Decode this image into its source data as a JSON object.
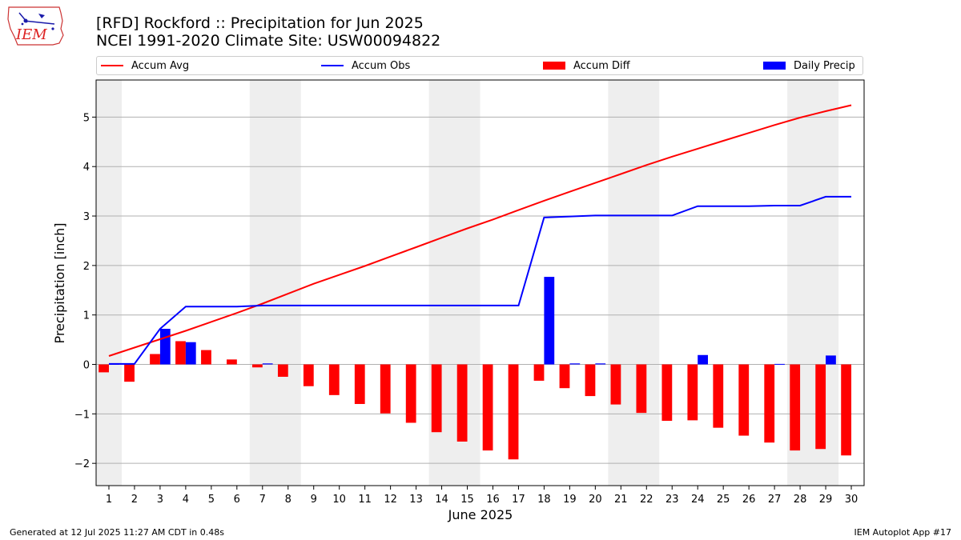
{
  "header": {
    "title_line1": "[RFD] Rockford :: Precipitation for Jun 2025",
    "title_line2": "NCEI 1991-2020 Climate Site: USW00094822"
  },
  "logo": {
    "text": "IEM"
  },
  "legend": {
    "items": [
      {
        "label": "Accum Avg",
        "kind": "line",
        "color": "#ff0000"
      },
      {
        "label": "Accum Obs",
        "kind": "line",
        "color": "#0000ff"
      },
      {
        "label": "Accum Diff",
        "kind": "bar",
        "color": "#ff0000"
      },
      {
        "label": "Daily Precip",
        "kind": "bar",
        "color": "#0000ff"
      }
    ]
  },
  "footer": {
    "left": "Generated at 12 Jul 2025 11:27 AM CDT in 0.48s",
    "right": "IEM Autoplot App #17"
  },
  "chart_data": {
    "type": "bar",
    "title": "[RFD] Rockford :: Precipitation for Jun 2025",
    "subtitle": "NCEI 1991-2020 Climate Site: USW00094822",
    "xlabel": "June 2025",
    "ylabel": "Precipitation [inch]",
    "xlim": [
      0.5,
      30.5
    ],
    "ylim": [
      -2.45,
      5.75
    ],
    "yticks": [
      -2,
      -1,
      0,
      1,
      2,
      3,
      4,
      5
    ],
    "ytick_labels": [
      "−2",
      "−1",
      "0",
      "1",
      "2",
      "3",
      "4",
      "5"
    ],
    "grid": "horizontal",
    "legend_position": "top",
    "weekend_shading": [
      [
        0.5,
        1.5
      ],
      [
        6.5,
        8.5
      ],
      [
        13.5,
        15.5
      ],
      [
        20.5,
        22.5
      ],
      [
        27.5,
        29.5
      ]
    ],
    "x": [
      1,
      2,
      3,
      4,
      5,
      6,
      7,
      8,
      9,
      10,
      11,
      12,
      13,
      14,
      15,
      16,
      17,
      18,
      19,
      20,
      21,
      22,
      23,
      24,
      25,
      26,
      27,
      28,
      29,
      30
    ],
    "series": [
      {
        "name": "Accum Avg",
        "type": "line",
        "color": "#ff0000",
        "values": [
          0.17,
          0.34,
          0.51,
          0.68,
          0.86,
          1.04,
          1.23,
          1.43,
          1.63,
          1.81,
          1.99,
          2.18,
          2.37,
          2.56,
          2.75,
          2.93,
          3.12,
          3.31,
          3.49,
          3.67,
          3.85,
          4.03,
          4.2,
          4.36,
          4.52,
          4.68,
          4.84,
          4.99,
          5.12,
          5.24
        ]
      },
      {
        "name": "Accum Obs",
        "type": "line",
        "color": "#0000ff",
        "values": [
          0.01,
          0.01,
          0.72,
          1.17,
          1.17,
          1.17,
          1.19,
          1.19,
          1.19,
          1.19,
          1.19,
          1.19,
          1.19,
          1.19,
          1.19,
          1.19,
          1.19,
          2.97,
          2.99,
          3.01,
          3.01,
          3.01,
          3.01,
          3.2,
          3.2,
          3.2,
          3.21,
          3.21,
          3.39,
          3.39
        ]
      },
      {
        "name": "Accum Diff",
        "type": "bar",
        "color": "#ff0000",
        "values": [
          -0.16,
          -0.35,
          0.21,
          0.47,
          0.29,
          0.1,
          -0.06,
          -0.25,
          -0.44,
          -0.62,
          -0.8,
          -0.99,
          -1.18,
          -1.37,
          -1.56,
          -1.74,
          -1.92,
          -0.33,
          -0.48,
          -0.64,
          -0.81,
          -0.98,
          -1.14,
          -1.13,
          -1.28,
          -1.44,
          -1.58,
          -1.74,
          -1.71,
          -1.84
        ]
      },
      {
        "name": "Daily Precip",
        "type": "bar",
        "color": "#0000ff",
        "values": [
          0.01,
          0,
          0.72,
          0.45,
          0,
          0,
          0.02,
          0,
          0,
          0,
          0,
          0,
          0,
          0,
          0,
          0,
          0,
          1.77,
          0.02,
          0.02,
          0,
          0,
          0,
          0.19,
          0,
          0,
          0.01,
          0,
          0.18,
          0
        ]
      }
    ]
  }
}
